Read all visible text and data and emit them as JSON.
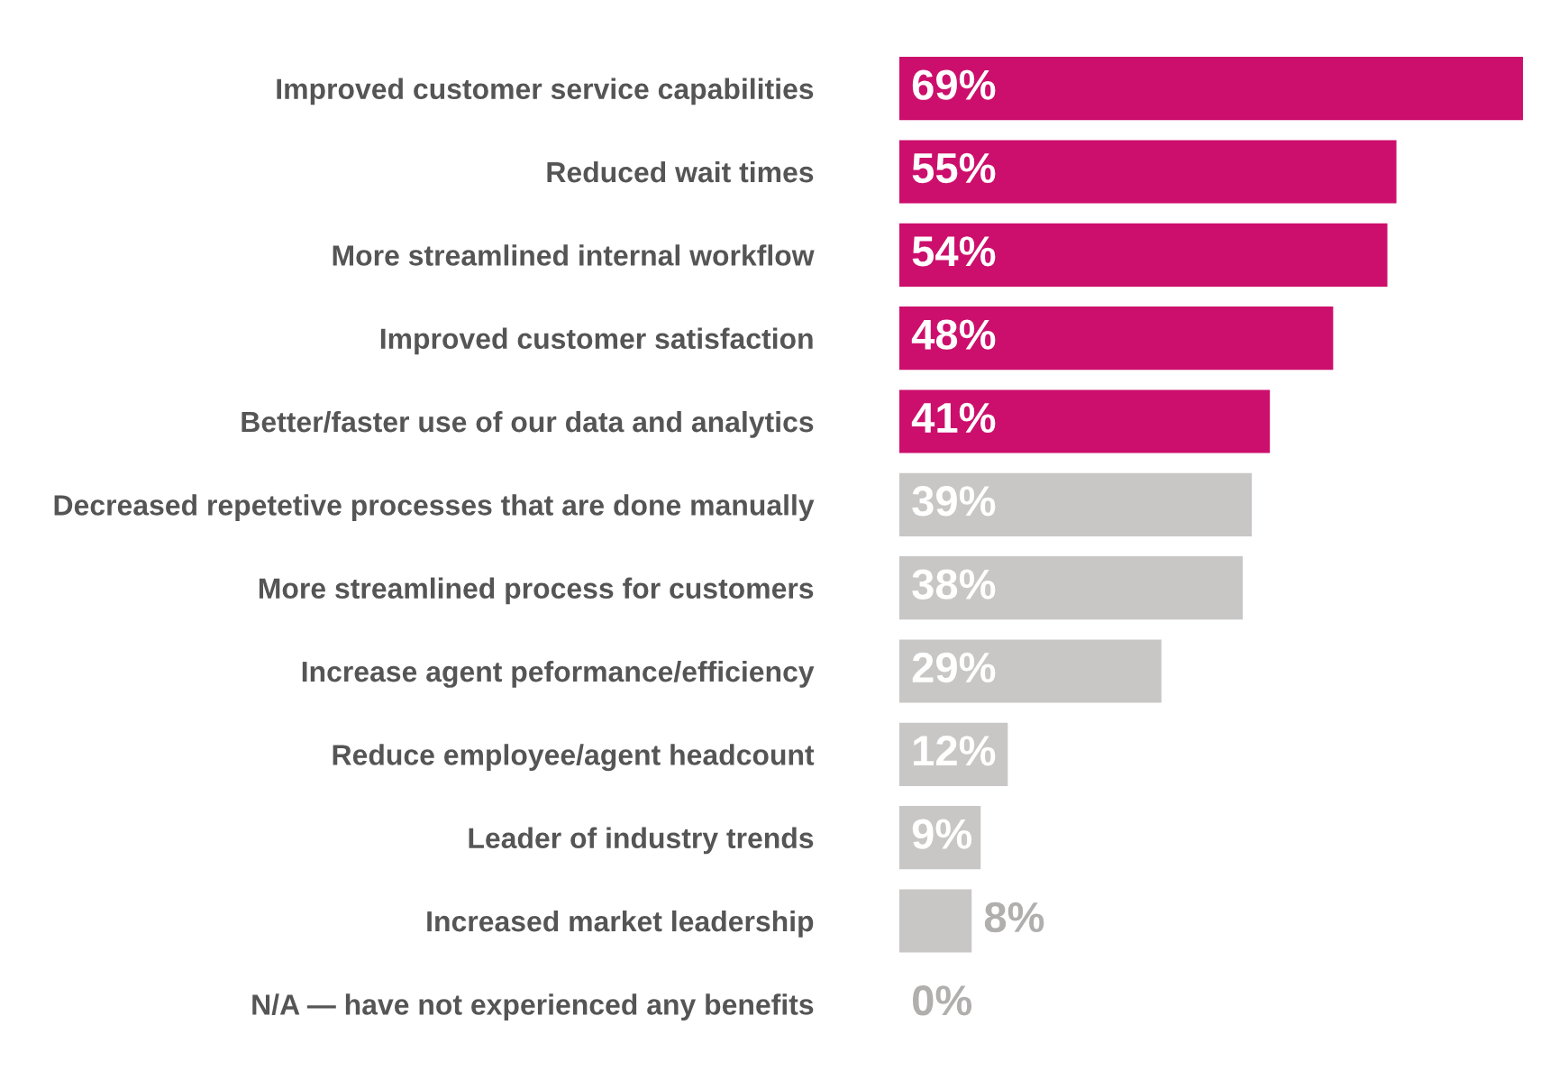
{
  "chart_data": {
    "type": "bar",
    "orientation": "horizontal",
    "categories": [
      "Improved customer service capabilities",
      "Reduced wait times",
      "More streamlined internal workflow",
      "Improved customer satisfaction",
      "Better/faster use of our data and analytics",
      "Decreased repetetive processes that are done manually",
      "More streamlined process for customers",
      "Increase agent peformance/efficiency",
      "Reduce employee/agent headcount",
      "Leader of industry trends",
      "Increased market leadership",
      "N/A — have not experienced any benefits"
    ],
    "values": [
      69,
      55,
      54,
      48,
      41,
      39,
      38,
      29,
      12,
      9,
      8,
      0
    ],
    "value_labels": [
      "69%",
      "55%",
      "54%",
      "48%",
      "41%",
      "39%",
      "38%",
      "29%",
      "12%",
      "9%",
      "8%",
      "0%"
    ],
    "colors": [
      "#cc0f6c",
      "#cc0f6c",
      "#cc0f6c",
      "#cc0f6c",
      "#cc0f6c",
      "#c8c7c6",
      "#c8c7c6",
      "#c8c7c6",
      "#c8c7c6",
      "#c8c7c6",
      "#c8c7c6",
      "#c8c7c6"
    ],
    "grid": false,
    "legend": false
  }
}
